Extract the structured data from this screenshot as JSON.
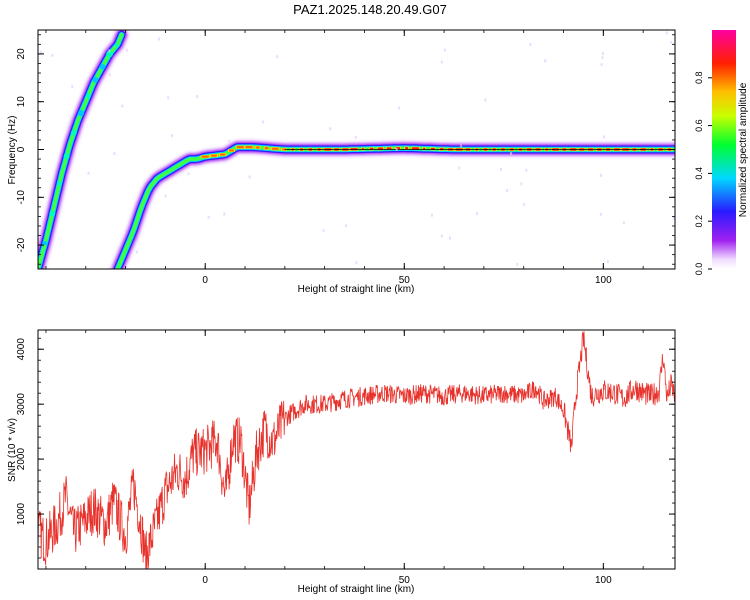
{
  "title": "PAZ1.2025.148.20.49.G07",
  "chart_data": [
    {
      "type": "heatmap",
      "xlabel": "Height of straight line (km)",
      "ylabel": "Frequency (Hz)",
      "xlim": [
        -42,
        118
      ],
      "ylim": [
        -25,
        25
      ],
      "xticks": [
        0,
        50,
        100
      ],
      "yticks": [
        -20,
        -10,
        0,
        10,
        20
      ],
      "colorbar": {
        "label": "Normalized spectral amplitude",
        "range": [
          0,
          1
        ],
        "ticks": [
          "0.0",
          "0.2",
          "0.4",
          "0.6",
          "0.8"
        ],
        "colormap": "rainbow (violet-blue-cyan-green-yellow-orange-red-magenta)"
      },
      "ridges": [
        {
          "name": "",
          "x": [
            -42,
            -40,
            -38,
            -36,
            -34,
            -32,
            -30,
            -28,
            -26,
            -24,
            -22,
            -21
          ],
          "y": [
            -25,
            -19,
            -12,
            -5,
            1,
            6,
            10,
            14,
            17,
            20,
            22,
            24
          ]
        },
        {
          "name": "",
          "x": [
            -22,
            -20,
            -18,
            -16,
            -14,
            -12,
            -10,
            -8,
            -6,
            -4,
            -2,
            0,
            5,
            8,
            12,
            20,
            35,
            50,
            62,
            75,
            90,
            105,
            118
          ],
          "y": [
            -25,
            -21,
            -17,
            -12,
            -8,
            -6,
            -5,
            -4,
            -3,
            -2,
            -2,
            -1.5,
            -1,
            0.5,
            0.5,
            0,
            0,
            0.3,
            0,
            0,
            0,
            0,
            0
          ]
        }
      ]
    },
    {
      "type": "line",
      "xlabel": "Height of straight line (km)",
      "ylabel": "SNR (10 * v/v)",
      "xlim": [
        -42,
        118
      ],
      "ylim": [
        0,
        4350
      ],
      "xticks": [
        0,
        50,
        100
      ],
      "yticks": [
        1000,
        2000,
        3000,
        4000
      ],
      "color": "#e8312b",
      "series": [
        {
          "name": "",
          "x": [
            -42,
            -40,
            -37,
            -35,
            -33,
            -30,
            -28,
            -25,
            -23,
            -20,
            -18,
            -16,
            -15,
            -12,
            -10,
            -7,
            -5,
            -3,
            0,
            3,
            5,
            7,
            9,
            11,
            13,
            15,
            17,
            20,
            25,
            30,
            35,
            40,
            45,
            50,
            55,
            60,
            65,
            70,
            75,
            80,
            83,
            85,
            88,
            90,
            92,
            93,
            95,
            97,
            100,
            103,
            105,
            108,
            110,
            112,
            114,
            115,
            116,
            117,
            118
          ],
          "y": [
            700,
            500,
            850,
            1300,
            650,
            900,
            1100,
            800,
            1250,
            600,
            1550,
            750,
            200,
            900,
            1400,
            1800,
            1650,
            2100,
            2150,
            2350,
            1300,
            2400,
            2300,
            1100,
            2150,
            2550,
            2300,
            2750,
            3000,
            3000,
            3100,
            3150,
            3200,
            3150,
            3200,
            3150,
            3200,
            3150,
            3200,
            3150,
            3300,
            3050,
            3150,
            2900,
            2200,
            3100,
            4200,
            3150,
            3250,
            3200,
            3100,
            3300,
            3200,
            3150,
            3250,
            3900,
            3100,
            3350,
            3150
          ]
        }
      ]
    }
  ]
}
